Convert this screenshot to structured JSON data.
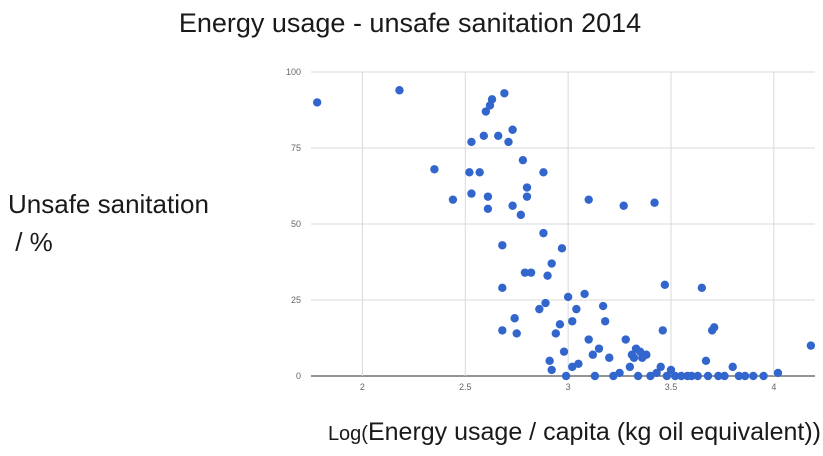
{
  "chart_data": {
    "type": "scatter",
    "title": "Energy usage - unsafe sanitation 2014",
    "ylabel": "Unsafe sanitation\n / %",
    "xlabel_prefix": "Log(",
    "xlabel": "Energy usage / capita (kg oil equivalent)",
    "xlabel_suffix": ")",
    "xlim": [
      1.75,
      4.2
    ],
    "ylim": [
      0,
      100
    ],
    "x_ticks": [
      "2",
      "2.5",
      "3",
      "3.5",
      "4"
    ],
    "x_tick_values": [
      2,
      2.5,
      3,
      3.5,
      4
    ],
    "y_ticks": [
      "0",
      "25",
      "50",
      "75",
      "100"
    ],
    "y_tick_values": [
      0,
      25,
      50,
      75,
      100
    ],
    "grid": true,
    "marker_color": "#3366cc",
    "points": [
      {
        "x": 1.78,
        "y": 90
      },
      {
        "x": 2.18,
        "y": 94
      },
      {
        "x": 2.35,
        "y": 68
      },
      {
        "x": 2.44,
        "y": 58
      },
      {
        "x": 2.52,
        "y": 67
      },
      {
        "x": 2.53,
        "y": 60
      },
      {
        "x": 2.53,
        "y": 77
      },
      {
        "x": 2.57,
        "y": 67
      },
      {
        "x": 2.59,
        "y": 79
      },
      {
        "x": 2.6,
        "y": 87
      },
      {
        "x": 2.61,
        "y": 55
      },
      {
        "x": 2.61,
        "y": 59
      },
      {
        "x": 2.62,
        "y": 89
      },
      {
        "x": 2.63,
        "y": 91
      },
      {
        "x": 2.66,
        "y": 79
      },
      {
        "x": 2.69,
        "y": 93
      },
      {
        "x": 2.68,
        "y": 43
      },
      {
        "x": 2.68,
        "y": 29
      },
      {
        "x": 2.68,
        "y": 15
      },
      {
        "x": 2.71,
        "y": 77
      },
      {
        "x": 2.73,
        "y": 81
      },
      {
        "x": 2.73,
        "y": 56
      },
      {
        "x": 2.74,
        "y": 19
      },
      {
        "x": 2.75,
        "y": 14
      },
      {
        "x": 2.77,
        "y": 53
      },
      {
        "x": 2.78,
        "y": 71
      },
      {
        "x": 2.79,
        "y": 34
      },
      {
        "x": 2.8,
        "y": 59
      },
      {
        "x": 2.8,
        "y": 62
      },
      {
        "x": 2.82,
        "y": 34
      },
      {
        "x": 2.86,
        "y": 22
      },
      {
        "x": 2.88,
        "y": 67
      },
      {
        "x": 2.88,
        "y": 47
      },
      {
        "x": 2.89,
        "y": 24
      },
      {
        "x": 2.9,
        "y": 33
      },
      {
        "x": 2.91,
        "y": 5
      },
      {
        "x": 2.92,
        "y": 2
      },
      {
        "x": 2.92,
        "y": 37
      },
      {
        "x": 2.94,
        "y": 14
      },
      {
        "x": 2.96,
        "y": 17
      },
      {
        "x": 2.97,
        "y": 42
      },
      {
        "x": 2.98,
        "y": 8
      },
      {
        "x": 2.99,
        "y": 0
      },
      {
        "x": 3.0,
        "y": 26
      },
      {
        "x": 3.02,
        "y": 18
      },
      {
        "x": 3.02,
        "y": 3
      },
      {
        "x": 3.04,
        "y": 22
      },
      {
        "x": 3.05,
        "y": 4
      },
      {
        "x": 3.08,
        "y": 27
      },
      {
        "x": 3.1,
        "y": 58
      },
      {
        "x": 3.1,
        "y": 12
      },
      {
        "x": 3.12,
        "y": 7
      },
      {
        "x": 3.13,
        "y": 0
      },
      {
        "x": 3.15,
        "y": 9
      },
      {
        "x": 3.17,
        "y": 23
      },
      {
        "x": 3.18,
        "y": 18
      },
      {
        "x": 3.2,
        "y": 6
      },
      {
        "x": 3.22,
        "y": 0
      },
      {
        "x": 3.25,
        "y": 1
      },
      {
        "x": 3.27,
        "y": 56
      },
      {
        "x": 3.28,
        "y": 12
      },
      {
        "x": 3.3,
        "y": 3
      },
      {
        "x": 3.31,
        "y": 7
      },
      {
        "x": 3.32,
        "y": 6
      },
      {
        "x": 3.33,
        "y": 9
      },
      {
        "x": 3.34,
        "y": 0
      },
      {
        "x": 3.35,
        "y": 8
      },
      {
        "x": 3.36,
        "y": 6
      },
      {
        "x": 3.38,
        "y": 7
      },
      {
        "x": 3.4,
        "y": 0
      },
      {
        "x": 3.42,
        "y": 57
      },
      {
        "x": 3.43,
        "y": 1
      },
      {
        "x": 3.45,
        "y": 3
      },
      {
        "x": 3.46,
        "y": 15
      },
      {
        "x": 3.47,
        "y": 30
      },
      {
        "x": 3.48,
        "y": 0
      },
      {
        "x": 3.5,
        "y": 2
      },
      {
        "x": 3.52,
        "y": 0
      },
      {
        "x": 3.55,
        "y": 0
      },
      {
        "x": 3.58,
        "y": 0
      },
      {
        "x": 3.6,
        "y": 0
      },
      {
        "x": 3.63,
        "y": 0
      },
      {
        "x": 3.65,
        "y": 29
      },
      {
        "x": 3.67,
        "y": 5
      },
      {
        "x": 3.68,
        "y": 0
      },
      {
        "x": 3.7,
        "y": 15
      },
      {
        "x": 3.71,
        "y": 16
      },
      {
        "x": 3.73,
        "y": 0
      },
      {
        "x": 3.76,
        "y": 0
      },
      {
        "x": 3.8,
        "y": 3
      },
      {
        "x": 3.83,
        "y": 0
      },
      {
        "x": 3.86,
        "y": 0
      },
      {
        "x": 3.9,
        "y": 0
      },
      {
        "x": 3.95,
        "y": 0
      },
      {
        "x": 4.02,
        "y": 1
      },
      {
        "x": 4.18,
        "y": 10
      }
    ]
  }
}
